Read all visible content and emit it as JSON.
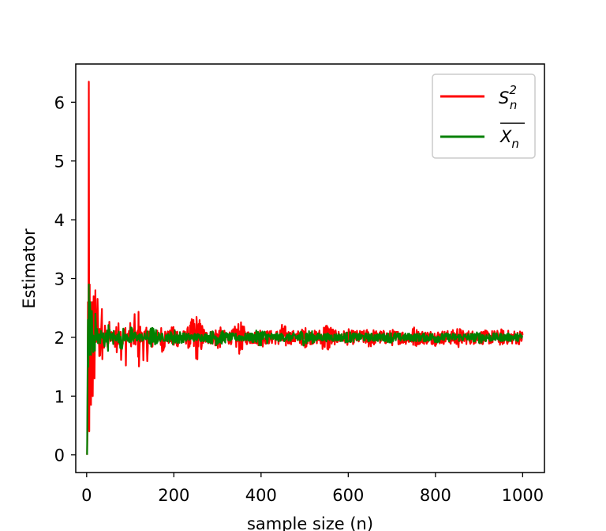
{
  "chart_data": {
    "type": "line",
    "title": "",
    "xlabel": "sample size (n)",
    "ylabel": "Estimator",
    "xlim": [
      -25,
      1050
    ],
    "ylim": [
      -0.3,
      6.65
    ],
    "xticks": [
      0,
      200,
      400,
      600,
      800,
      1000
    ],
    "yticks": [
      0,
      1,
      2,
      3,
      4,
      5,
      6
    ],
    "grid": false,
    "legend_position": "top-right",
    "series": [
      {
        "name": "S",
        "name_sup": "2",
        "name_sub": "n",
        "color": "#ff0000",
        "n_range": [
          1,
          1000
        ],
        "x": [
          1,
          2,
          3,
          4,
          5,
          6,
          7,
          8,
          9,
          10,
          12,
          14,
          16,
          18,
          20,
          25,
          30,
          35,
          40,
          50,
          60,
          70,
          80,
          90,
          100,
          110,
          120,
          130,
          140,
          150,
          175,
          200,
          250,
          300,
          350,
          400,
          450,
          500,
          550,
          600,
          650,
          700,
          750,
          800,
          850,
          900,
          950,
          1000
        ],
        "y": [
          0,
          0.45,
          2.6,
          1.1,
          6.35,
          0.4,
          2.9,
          1.2,
          2.4,
          0.85,
          2.6,
          1.0,
          2.7,
          1.3,
          2.8,
          1.0,
          2.9,
          1.3,
          2.4,
          1.6,
          2.2,
          1.4,
          2.5,
          1.5,
          2.3,
          1.6,
          2.6,
          1.6,
          2.5,
          1.7,
          2.3,
          1.7,
          2.45,
          1.75,
          2.3,
          1.8,
          2.25,
          1.8,
          2.3,
          1.85,
          2.2,
          1.85,
          2.2,
          1.85,
          2.2,
          1.9,
          2.15,
          1.95
        ]
      },
      {
        "name": "X",
        "name_sub": "n",
        "name_overline": true,
        "color": "#008000",
        "n_range": [
          1,
          1000
        ],
        "x": [
          1,
          2,
          3,
          4,
          5,
          6,
          8,
          10,
          12,
          15,
          20,
          25,
          30,
          40,
          50,
          60,
          80,
          100,
          150,
          200,
          300,
          400,
          500,
          600,
          700,
          800,
          900,
          1000
        ],
        "y": [
          0,
          1.2,
          2.3,
          1.5,
          2.9,
          1.7,
          2.6,
          1.7,
          2.45,
          1.75,
          2.4,
          1.7,
          2.35,
          1.75,
          2.3,
          1.8,
          2.25,
          1.8,
          2.2,
          1.85,
          2.15,
          1.85,
          2.15,
          1.9,
          2.1,
          1.9,
          2.1,
          2.0
        ]
      }
    ]
  }
}
